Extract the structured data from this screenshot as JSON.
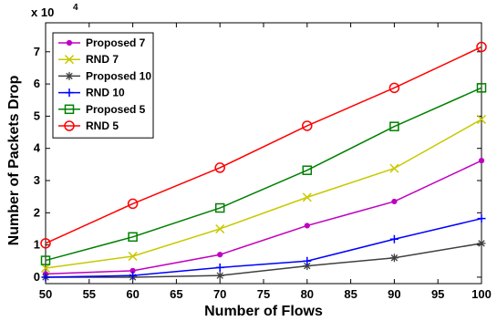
{
  "chart_data": {
    "type": "line",
    "xlabel": "Number of Flows",
    "ylabel": "Number of Packets Drop",
    "y_scale_label": "x 10",
    "y_scale_exponent": "4",
    "xlim": [
      50,
      100
    ],
    "ylim": [
      -0.2,
      7.9
    ],
    "x_ticks": [
      50,
      55,
      60,
      65,
      70,
      75,
      80,
      85,
      90,
      95,
      100
    ],
    "y_ticks": [
      0,
      1,
      2,
      3,
      4,
      5,
      6,
      7
    ],
    "x": [
      50,
      60,
      70,
      80,
      90,
      100
    ],
    "grid": false,
    "legend_position": "top-left",
    "series": [
      {
        "name": "Proposed 7",
        "color": "#c000c0",
        "marker": "dot",
        "values": [
          0.1,
          0.2,
          0.7,
          1.6,
          2.35,
          3.62
        ]
      },
      {
        "name": "RND 7",
        "color": "#c8c800",
        "marker": "x",
        "values": [
          0.28,
          0.65,
          1.5,
          2.48,
          3.38,
          4.9
        ]
      },
      {
        "name": "Proposed 10",
        "color": "#404040",
        "marker": "star",
        "values": [
          0.0,
          0.0,
          0.05,
          0.35,
          0.6,
          1.05
        ]
      },
      {
        "name": "RND 10",
        "color": "#0000ff",
        "marker": "plus",
        "values": [
          0.0,
          0.05,
          0.3,
          0.5,
          1.18,
          1.82
        ]
      },
      {
        "name": "Proposed 5",
        "color": "#008000",
        "marker": "square",
        "values": [
          0.52,
          1.25,
          2.15,
          3.32,
          4.68,
          5.88
        ]
      },
      {
        "name": "RND 5",
        "color": "#ff0000",
        "marker": "circle",
        "values": [
          1.05,
          2.28,
          3.4,
          4.7,
          5.88,
          7.15
        ]
      }
    ]
  }
}
